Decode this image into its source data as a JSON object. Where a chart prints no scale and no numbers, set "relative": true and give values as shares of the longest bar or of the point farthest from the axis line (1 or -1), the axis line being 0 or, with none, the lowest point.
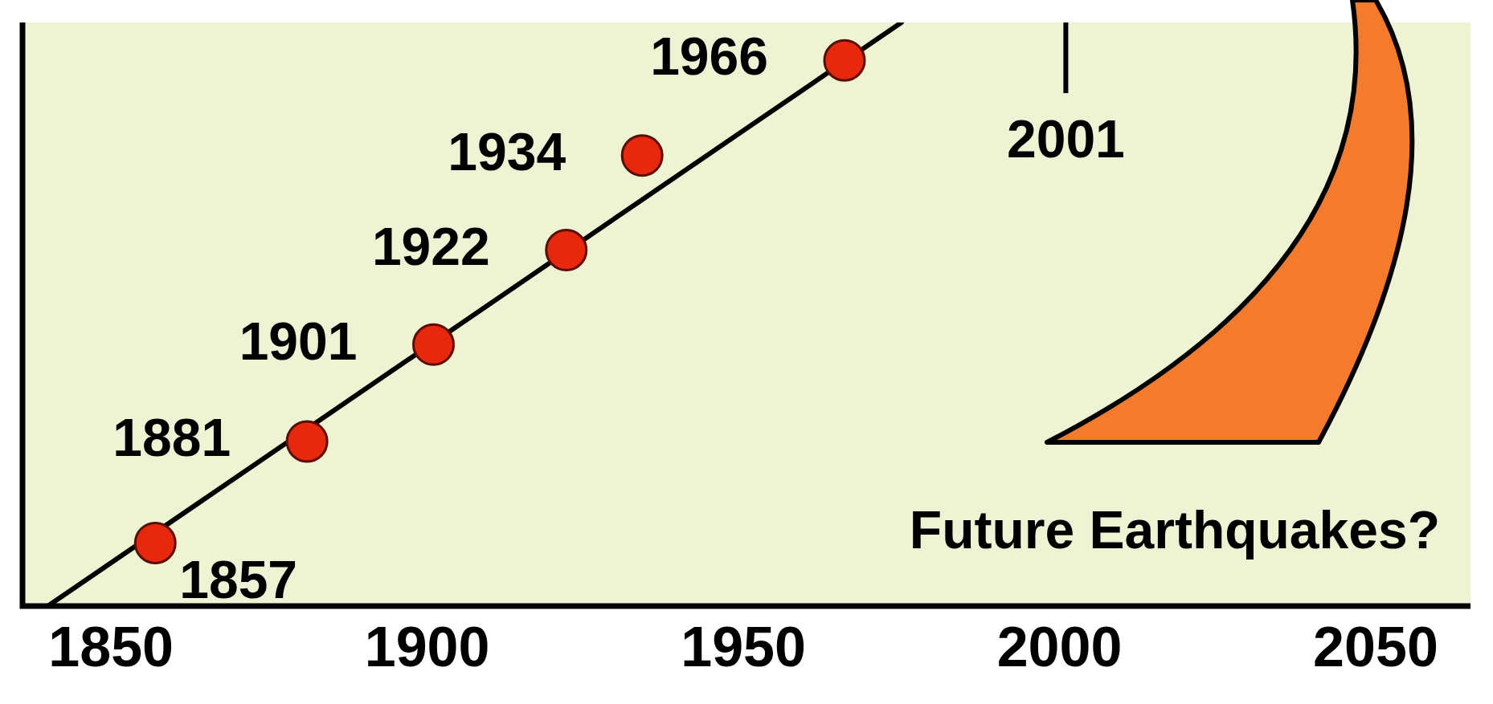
{
  "chart_data": {
    "type": "scatter",
    "relative": true,
    "xlim": [
      1836,
      2065
    ],
    "xticks": [
      1850,
      1900,
      1950,
      2000,
      2050
    ],
    "series": [
      {
        "type": "line",
        "marker": "none",
        "color": "#000000",
        "x": [
          1840,
          1975
        ],
        "values": [
          0,
          1
        ]
      },
      {
        "marker": "circle",
        "color": "#e8280c",
        "x": [
          1857,
          1881,
          1901,
          1922,
          1934,
          1966
        ],
        "values": [
          0.108,
          0.282,
          0.448,
          0.61,
          0.772,
          0.935
        ]
      }
    ],
    "ref_lines": [
      {
        "axis": "x",
        "value": 2001,
        "label": "2001",
        "color": "#000000"
      }
    ],
    "annotations": [
      {
        "text": "1857",
        "x": 1857,
        "y": 0.108
      },
      {
        "text": "1881",
        "x": 1881,
        "y": 0.282
      },
      {
        "text": "1901",
        "x": 1901,
        "y": 0.448
      },
      {
        "text": "1922",
        "x": 1922,
        "y": 0.61
      },
      {
        "text": "1934",
        "x": 1934,
        "y": 0.772
      },
      {
        "text": "1966",
        "x": 1966,
        "y": 0.935
      },
      "Future Earthquakes?"
    ]
  }
}
